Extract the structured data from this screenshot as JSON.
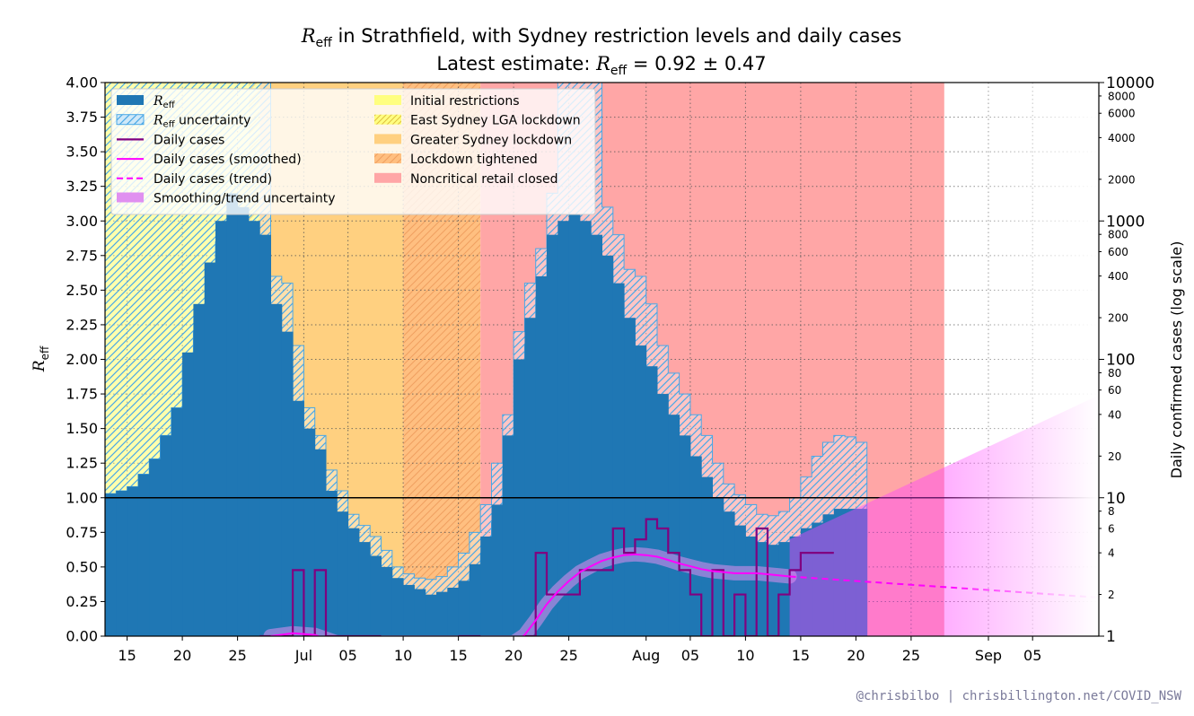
{
  "title": {
    "prefix_var": "R",
    "prefix_sub": "eff",
    "line1_rest": " in Strathfield, with Sydney restriction levels and daily cases",
    "line2_label": "Latest estimate: ",
    "line2_var": "R",
    "line2_sub": "eff",
    "line2_value": " = 0.92 ± 0.47"
  },
  "credit": "@chrisbilbo | chrisbillington.net/COVID_NSW",
  "colors": {
    "reff": "#1f77b4",
    "reff_uncertainty_hatch": "#4aa8e6",
    "daily_cases": "#800080",
    "smoothed": "#ff00ff",
    "smoothing_uncertainty": "#e090f0",
    "initial_restrictions": "#ffff80",
    "east_sydney_lockdown": "#ffef70",
    "greater_sydney_lockdown": "#ffd080",
    "lockdown_tightened": "#ffbf80",
    "noncritical_retail_closed": "#ffa6a6"
  },
  "chart_data": {
    "type": "line",
    "title": "Reff in Strathfield, with Sydney restriction levels and daily cases",
    "subtitle": "Latest estimate: Reff = 0.92 ± 0.47",
    "left_axis": {
      "label_var": "R",
      "label_sub": "eff",
      "ylim": [
        0,
        4
      ],
      "ticks": [
        "0.00",
        "0.25",
        "0.50",
        "0.75",
        "1.00",
        "1.25",
        "1.50",
        "1.75",
        "2.00",
        "2.25",
        "2.50",
        "2.75",
        "3.00",
        "3.25",
        "3.50",
        "3.75",
        "4.00"
      ]
    },
    "right_axis": {
      "label": "Daily confirmed cases (log scale)",
      "scale": "log",
      "ylim": [
        1,
        10000
      ],
      "major_ticks": [
        "1",
        "10",
        "100",
        "1000",
        "10000"
      ],
      "minor_ticks": [
        "2",
        "4",
        "6",
        "8",
        "20",
        "40",
        "60",
        "80",
        "200",
        "400",
        "600",
        "800",
        "2000",
        "4000",
        "6000",
        "8000"
      ]
    },
    "x_axis": {
      "start_date": "2021-06-13",
      "end_date": "2021-09-11",
      "tick_dates": [
        "2021-06-15",
        "2021-06-20",
        "2021-06-25",
        "2021-07-01",
        "2021-07-05",
        "2021-07-10",
        "2021-07-15",
        "2021-07-20",
        "2021-07-25",
        "2021-08-01",
        "2021-08-05",
        "2021-08-10",
        "2021-08-15",
        "2021-08-20",
        "2021-08-25",
        "2021-09-01",
        "2021-09-05"
      ],
      "tick_labels": [
        "15",
        "20",
        "25",
        "Jul",
        "05",
        "10",
        "15",
        "20",
        "25",
        "Aug",
        "05",
        "10",
        "15",
        "20",
        "25",
        "Sep",
        "05"
      ]
    },
    "grid": true,
    "legend_position": "top-left",
    "legend": [
      {
        "key": "reff",
        "label_var": "R",
        "label_sub": "eff",
        "label_rest": ""
      },
      {
        "key": "reff_uncertainty",
        "label_var": "R",
        "label_sub": "eff",
        "label_rest": " uncertainty"
      },
      {
        "key": "daily_cases",
        "label": "Daily cases"
      },
      {
        "key": "smoothed",
        "label": "Daily cases (smoothed)"
      },
      {
        "key": "trend",
        "label": "Daily cases (trend)"
      },
      {
        "key": "smoothing_uncertainty",
        "label": "Smoothing/trend uncertainty"
      },
      {
        "key": "initial_restrictions",
        "label": "Initial restrictions"
      },
      {
        "key": "east_sydney_lockdown",
        "label": "East Sydney LGA lockdown"
      },
      {
        "key": "greater_sydney_lockdown",
        "label": "Greater Sydney lockdown"
      },
      {
        "key": "lockdown_tightened",
        "label": "Lockdown tightened"
      },
      {
        "key": "noncritical_retail_closed",
        "label": "Noncritical retail closed"
      }
    ],
    "restriction_periods": [
      {
        "label": "Initial restrictions",
        "start": "2021-06-13",
        "end": "2021-06-26"
      },
      {
        "label": "East Sydney LGA lockdown",
        "start": "2021-06-26",
        "end": "2021-06-27"
      },
      {
        "label": "Greater Sydney lockdown",
        "start": "2021-06-27",
        "end": "2021-07-10"
      },
      {
        "label": "Lockdown tightened",
        "start": "2021-07-10",
        "end": "2021-07-17"
      },
      {
        "label": "Noncritical retail closed",
        "start": "2021-07-17",
        "end": "2021-08-28"
      }
    ],
    "reference_line": 1.0,
    "reff_series": [
      {
        "date": "2021-06-13",
        "reff": 1.03,
        "low": 1.03,
        "high": 4.0
      },
      {
        "date": "2021-06-14",
        "reff": 1.05,
        "low": 1.05,
        "high": 4.0
      },
      {
        "date": "2021-06-15",
        "reff": 1.08,
        "low": 1.08,
        "high": 4.0
      },
      {
        "date": "2021-06-16",
        "reff": 1.17,
        "low": 1.17,
        "high": 4.0
      },
      {
        "date": "2021-06-17",
        "reff": 1.28,
        "low": 1.28,
        "high": 4.0
      },
      {
        "date": "2021-06-18",
        "reff": 1.45,
        "low": 1.45,
        "high": 4.0
      },
      {
        "date": "2021-06-19",
        "reff": 1.65,
        "low": 1.65,
        "high": 4.0
      },
      {
        "date": "2021-06-20",
        "reff": 2.05,
        "low": 1.95,
        "high": 4.0
      },
      {
        "date": "2021-06-21",
        "reff": 2.4,
        "low": 2.2,
        "high": 4.0
      },
      {
        "date": "2021-06-22",
        "reff": 2.7,
        "low": 2.4,
        "high": 4.0
      },
      {
        "date": "2021-06-23",
        "reff": 3.0,
        "low": 2.85,
        "high": 4.0
      },
      {
        "date": "2021-06-24",
        "reff": 3.2,
        "low": 3.0,
        "high": 4.0
      },
      {
        "date": "2021-06-25",
        "reff": 3.1,
        "low": 2.95,
        "high": 4.0
      },
      {
        "date": "2021-06-26",
        "reff": 3.0,
        "low": 2.9,
        "high": 4.0
      },
      {
        "date": "2021-06-27",
        "reff": 2.9,
        "low": 2.55,
        "high": 4.0
      },
      {
        "date": "2021-06-28",
        "reff": 2.4,
        "low": 2.2,
        "high": 2.6
      },
      {
        "date": "2021-06-29",
        "reff": 2.2,
        "low": 1.95,
        "high": 2.55
      },
      {
        "date": "2021-06-30",
        "reff": 1.7,
        "low": 1.5,
        "high": 2.1
      },
      {
        "date": "2021-07-01",
        "reff": 1.5,
        "low": 1.3,
        "high": 1.65
      },
      {
        "date": "2021-07-02",
        "reff": 1.35,
        "low": 1.15,
        "high": 1.45
      },
      {
        "date": "2021-07-03",
        "reff": 1.05,
        "low": 0.88,
        "high": 1.2
      },
      {
        "date": "2021-07-04",
        "reff": 0.9,
        "low": 0.78,
        "high": 1.05
      },
      {
        "date": "2021-07-05",
        "reff": 0.78,
        "low": 0.65,
        "high": 0.88
      },
      {
        "date": "2021-07-06",
        "reff": 0.68,
        "low": 0.55,
        "high": 0.8
      },
      {
        "date": "2021-07-07",
        "reff": 0.58,
        "low": 0.45,
        "high": 0.72
      },
      {
        "date": "2021-07-08",
        "reff": 0.5,
        "low": 0.38,
        "high": 0.62
      },
      {
        "date": "2021-07-09",
        "reff": 0.42,
        "low": 0.3,
        "high": 0.5
      },
      {
        "date": "2021-07-10",
        "reff": 0.37,
        "low": 0.25,
        "high": 0.45
      },
      {
        "date": "2021-07-11",
        "reff": 0.34,
        "low": 0.22,
        "high": 0.42
      },
      {
        "date": "2021-07-12",
        "reff": 0.3,
        "low": 0.2,
        "high": 0.41
      },
      {
        "date": "2021-07-13",
        "reff": 0.32,
        "low": 0.2,
        "high": 0.43
      },
      {
        "date": "2021-07-14",
        "reff": 0.35,
        "low": 0.23,
        "high": 0.5
      },
      {
        "date": "2021-07-15",
        "reff": 0.4,
        "low": 0.3,
        "high": 0.6
      },
      {
        "date": "2021-07-16",
        "reff": 0.52,
        "low": 0.45,
        "high": 0.75
      },
      {
        "date": "2021-07-17",
        "reff": 0.72,
        "low": 0.6,
        "high": 0.95
      },
      {
        "date": "2021-07-18",
        "reff": 0.95,
        "low": 0.82,
        "high": 1.25
      },
      {
        "date": "2021-07-19",
        "reff": 1.45,
        "low": 1.2,
        "high": 1.6
      },
      {
        "date": "2021-07-20",
        "reff": 2.0,
        "low": 1.75,
        "high": 2.2
      },
      {
        "date": "2021-07-21",
        "reff": 2.3,
        "low": 2.1,
        "high": 2.55
      },
      {
        "date": "2021-07-22",
        "reff": 2.6,
        "low": 2.45,
        "high": 2.8
      },
      {
        "date": "2021-07-23",
        "reff": 2.9,
        "low": 2.75,
        "high": 3.2
      },
      {
        "date": "2021-07-24",
        "reff": 3.0,
        "low": 2.85,
        "high": 4.0
      },
      {
        "date": "2021-07-25",
        "reff": 3.05,
        "low": 2.95,
        "high": 4.0
      },
      {
        "date": "2021-07-26",
        "reff": 3.0,
        "low": 2.9,
        "high": 4.0
      },
      {
        "date": "2021-07-27",
        "reff": 2.9,
        "low": 2.8,
        "high": 4.0
      },
      {
        "date": "2021-07-28",
        "reff": 2.75,
        "low": 2.6,
        "high": 3.1
      },
      {
        "date": "2021-07-29",
        "reff": 2.55,
        "low": 2.4,
        "high": 2.9
      },
      {
        "date": "2021-07-30",
        "reff": 2.3,
        "low": 2.15,
        "high": 2.65
      },
      {
        "date": "2021-07-31",
        "reff": 2.1,
        "low": 1.95,
        "high": 2.6
      },
      {
        "date": "2021-08-01",
        "reff": 1.95,
        "low": 1.8,
        "high": 2.4
      },
      {
        "date": "2021-08-02",
        "reff": 1.75,
        "low": 1.6,
        "high": 2.1
      },
      {
        "date": "2021-08-03",
        "reff": 1.6,
        "low": 1.45,
        "high": 1.9
      },
      {
        "date": "2021-08-04",
        "reff": 1.45,
        "low": 1.3,
        "high": 1.75
      },
      {
        "date": "2021-08-05",
        "reff": 1.3,
        "low": 1.15,
        "high": 1.6
      },
      {
        "date": "2021-08-06",
        "reff": 1.15,
        "low": 1.0,
        "high": 1.45
      },
      {
        "date": "2021-08-07",
        "reff": 1.0,
        "low": 0.85,
        "high": 1.25
      },
      {
        "date": "2021-08-08",
        "reff": 0.9,
        "low": 0.75,
        "high": 1.1
      },
      {
        "date": "2021-08-09",
        "reff": 0.8,
        "low": 0.68,
        "high": 1.02
      },
      {
        "date": "2021-08-10",
        "reff": 0.72,
        "low": 0.62,
        "high": 0.95
      },
      {
        "date": "2021-08-11",
        "reff": 0.68,
        "low": 0.58,
        "high": 0.88
      },
      {
        "date": "2021-08-12",
        "reff": 0.66,
        "low": 0.56,
        "high": 0.87
      },
      {
        "date": "2021-08-13",
        "reff": 0.68,
        "low": 0.58,
        "high": 0.9
      },
      {
        "date": "2021-08-14",
        "reff": 0.72,
        "low": 0.6,
        "high": 1.0
      },
      {
        "date": "2021-08-15",
        "reff": 0.78,
        "low": 0.63,
        "high": 1.15
      },
      {
        "date": "2021-08-16",
        "reff": 0.82,
        "low": 0.65,
        "high": 1.3
      },
      {
        "date": "2021-08-17",
        "reff": 0.88,
        "low": 0.67,
        "high": 1.4
      },
      {
        "date": "2021-08-18",
        "reff": 0.92,
        "low": 0.68,
        "high": 1.45
      },
      {
        "date": "2021-08-19",
        "reff": 0.92,
        "low": 0.7,
        "high": 1.44
      },
      {
        "date": "2021-08-20",
        "reff": 0.92,
        "low": 0.72,
        "high": 1.4
      }
    ],
    "daily_cases": [
      {
        "date": "2021-06-27",
        "cases": 0
      },
      {
        "date": "2021-06-28",
        "cases": 0
      },
      {
        "date": "2021-06-29",
        "cases": 0
      },
      {
        "date": "2021-06-30",
        "cases": 3
      },
      {
        "date": "2021-07-01",
        "cases": 0
      },
      {
        "date": "2021-07-02",
        "cases": 3
      },
      {
        "date": "2021-07-03",
        "cases": 0
      },
      {
        "date": "2021-07-04",
        "cases": 0
      },
      {
        "date": "2021-07-05",
        "cases": 0
      },
      {
        "date": "2021-07-06",
        "cases": 0
      },
      {
        "date": "2021-07-07",
        "cases": 0
      },
      {
        "date": "2021-07-15",
        "cases": 0
      },
      {
        "date": "2021-07-16",
        "cases": 0
      },
      {
        "date": "2021-07-21",
        "cases": 0
      },
      {
        "date": "2021-07-22",
        "cases": 4
      },
      {
        "date": "2021-07-23",
        "cases": 2
      },
      {
        "date": "2021-07-24",
        "cases": 2
      },
      {
        "date": "2021-07-25",
        "cases": 2
      },
      {
        "date": "2021-07-26",
        "cases": 3
      },
      {
        "date": "2021-07-27",
        "cases": 3
      },
      {
        "date": "2021-07-28",
        "cases": 3
      },
      {
        "date": "2021-07-29",
        "cases": 6
      },
      {
        "date": "2021-07-30",
        "cases": 4
      },
      {
        "date": "2021-07-31",
        "cases": 5
      },
      {
        "date": "2021-08-01",
        "cases": 7
      },
      {
        "date": "2021-08-02",
        "cases": 6
      },
      {
        "date": "2021-08-03",
        "cases": 4
      },
      {
        "date": "2021-08-04",
        "cases": 3
      },
      {
        "date": "2021-08-05",
        "cases": 2
      },
      {
        "date": "2021-08-06",
        "cases": 0
      },
      {
        "date": "2021-08-07",
        "cases": 3
      },
      {
        "date": "2021-08-08",
        "cases": 0
      },
      {
        "date": "2021-08-09",
        "cases": 2
      },
      {
        "date": "2021-08-10",
        "cases": 0
      },
      {
        "date": "2021-08-11",
        "cases": 6
      },
      {
        "date": "2021-08-12",
        "cases": 0
      },
      {
        "date": "2021-08-13",
        "cases": 2
      },
      {
        "date": "2021-08-14",
        "cases": 3
      },
      {
        "date": "2021-08-15",
        "cases": 4
      },
      {
        "date": "2021-08-16",
        "cases": 4
      },
      {
        "date": "2021-08-17",
        "cases": 4
      }
    ],
    "smoothed_cases": [
      {
        "date": "2021-06-28",
        "cases": 1.0
      },
      {
        "date": "2021-06-30",
        "cases": 1.05
      },
      {
        "date": "2021-07-02",
        "cases": 1.02
      },
      {
        "date": "2021-07-04",
        "cases": 0.9
      },
      {
        "date": "2021-07-20",
        "cases": 0.9
      },
      {
        "date": "2021-07-21",
        "cases": 1.02
      },
      {
        "date": "2021-07-22",
        "cases": 1.3
      },
      {
        "date": "2021-07-23",
        "cases": 1.7
      },
      {
        "date": "2021-07-24",
        "cases": 2.1
      },
      {
        "date": "2021-07-25",
        "cases": 2.5
      },
      {
        "date": "2021-07-26",
        "cases": 2.9
      },
      {
        "date": "2021-07-27",
        "cases": 3.2
      },
      {
        "date": "2021-07-28",
        "cases": 3.5
      },
      {
        "date": "2021-07-29",
        "cases": 3.7
      },
      {
        "date": "2021-07-30",
        "cases": 3.85
      },
      {
        "date": "2021-07-31",
        "cases": 3.9
      },
      {
        "date": "2021-08-01",
        "cases": 3.85
      },
      {
        "date": "2021-08-02",
        "cases": 3.75
      },
      {
        "date": "2021-08-03",
        "cases": 3.55
      },
      {
        "date": "2021-08-04",
        "cases": 3.35
      },
      {
        "date": "2021-08-05",
        "cases": 3.2
      },
      {
        "date": "2021-08-06",
        "cases": 3.05
      },
      {
        "date": "2021-08-07",
        "cases": 2.95
      },
      {
        "date": "2021-08-08",
        "cases": 2.9
      },
      {
        "date": "2021-08-09",
        "cases": 2.85
      },
      {
        "date": "2021-08-10",
        "cases": 2.85
      },
      {
        "date": "2021-08-11",
        "cases": 2.85
      },
      {
        "date": "2021-08-12",
        "cases": 2.8
      },
      {
        "date": "2021-08-13",
        "cases": 2.75
      },
      {
        "date": "2021-08-14",
        "cases": 2.7
      }
    ],
    "trend_projection": [
      {
        "date": "2021-08-14",
        "cases": 2.7
      },
      {
        "date": "2021-08-25",
        "cases": 2.35
      },
      {
        "date": "2021-09-05",
        "cases": 2.05
      },
      {
        "date": "2021-09-11",
        "cases": 1.9
      }
    ],
    "trend_uncertainty": [
      {
        "date": "2021-08-14",
        "low": 1.0,
        "high": 5.0
      },
      {
        "date": "2021-09-11",
        "low": 1.0,
        "high": 55
      }
    ]
  }
}
